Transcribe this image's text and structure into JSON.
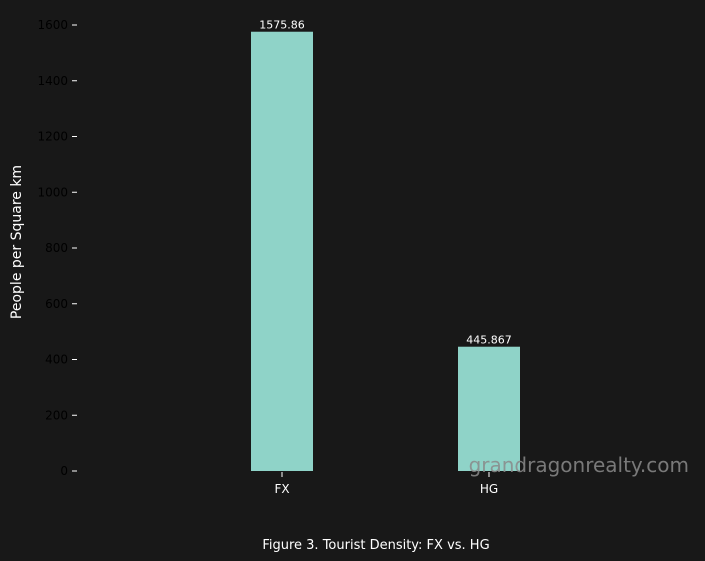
{
  "chart_data": {
    "type": "bar",
    "categories": [
      "FX",
      "HG"
    ],
    "values": [
      1575.86,
      445.867
    ],
    "data_labels": [
      "1575.86",
      "445.867"
    ],
    "ylabel": "People per Square km",
    "xlabel": "",
    "ylim": [
      0,
      1650
    ],
    "yticks": [
      0,
      200,
      400,
      600,
      800,
      1000,
      1200,
      1400,
      1600
    ],
    "grid": false,
    "colors": {
      "bar": "#8fd3c8",
      "background": "#181818",
      "tick_label": "#000000",
      "text": "#ffffff"
    }
  },
  "caption": "Figure 3. Tourist Density: FX vs. HG",
  "watermark": "grandragonrealty.com"
}
